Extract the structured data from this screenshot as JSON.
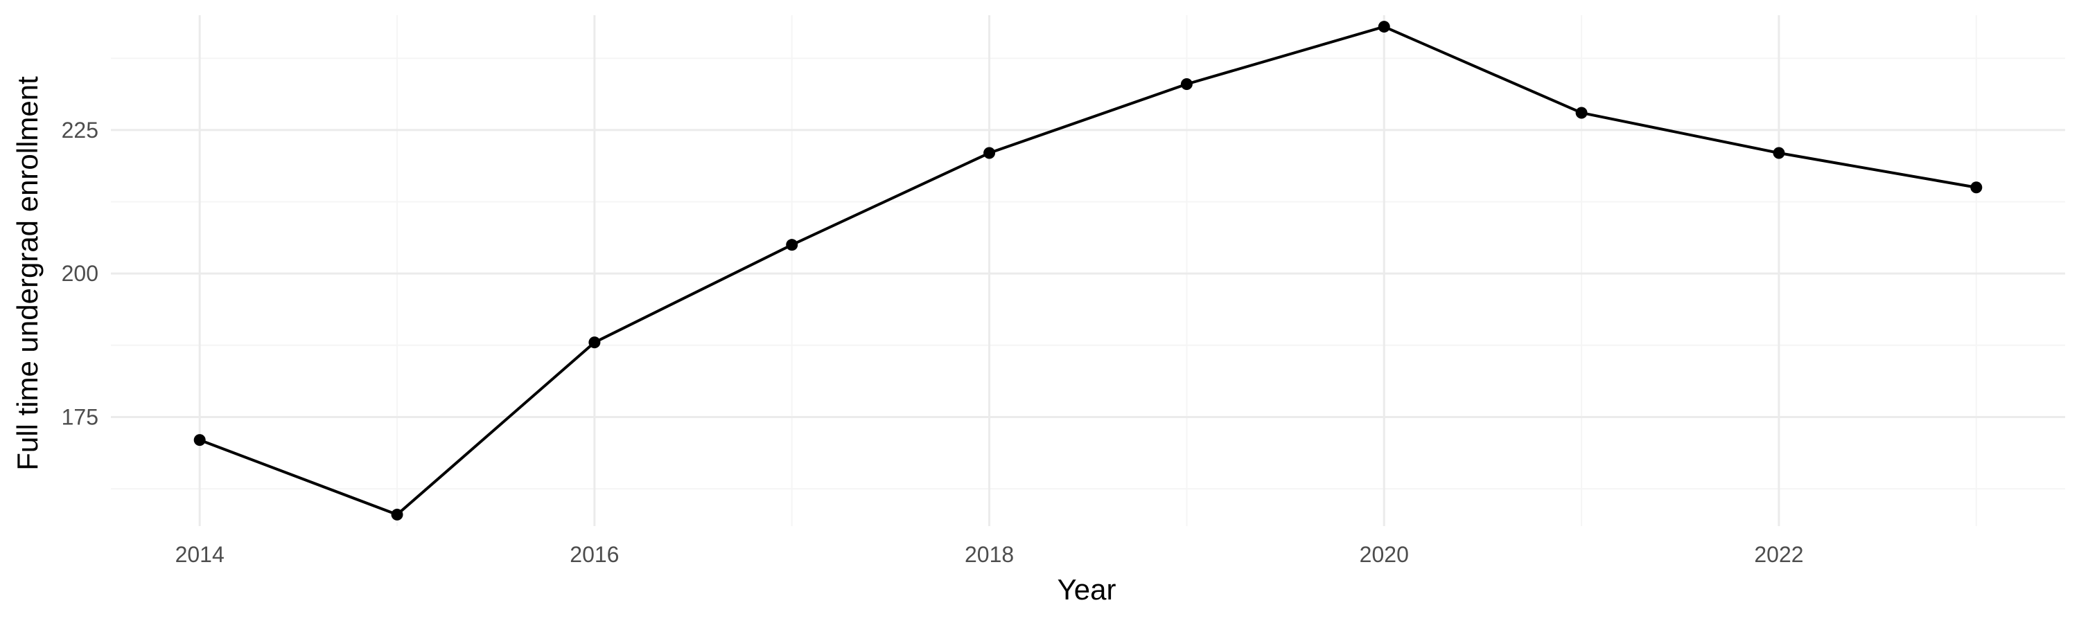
{
  "chart_data": {
    "type": "line",
    "title": "",
    "xlabel": "Year",
    "ylabel": "Full time undergrad enrollment",
    "x": [
      2014,
      2015,
      2016,
      2017,
      2018,
      2019,
      2020,
      2021,
      2022,
      2023
    ],
    "series": [
      {
        "values": [
          171,
          158,
          188,
          205,
          221,
          233,
          243,
          228,
          221,
          215
        ]
      }
    ],
    "xlim": [
      2013.55,
      2023.45
    ],
    "ylim": [
      156,
      245
    ],
    "x_ticks": [
      2014,
      2016,
      2018,
      2020,
      2022
    ],
    "x_tick_labels": [
      "2014",
      "2016",
      "2018",
      "2020",
      "2022"
    ],
    "y_ticks": [
      175,
      200,
      225
    ],
    "y_tick_labels": [
      "175",
      "200",
      "225"
    ],
    "x_minor_ticks": [
      2015,
      2017,
      2019,
      2021,
      2023
    ],
    "y_minor_ticks": [
      162.5,
      187.5,
      212.5,
      237.5
    ],
    "grid": true,
    "legend": "none",
    "colors": {
      "line": "#000000",
      "points": "#000000",
      "grid_major": "#ebebeb",
      "grid_minor": "#f5f5f5",
      "background": "#ffffff"
    }
  }
}
